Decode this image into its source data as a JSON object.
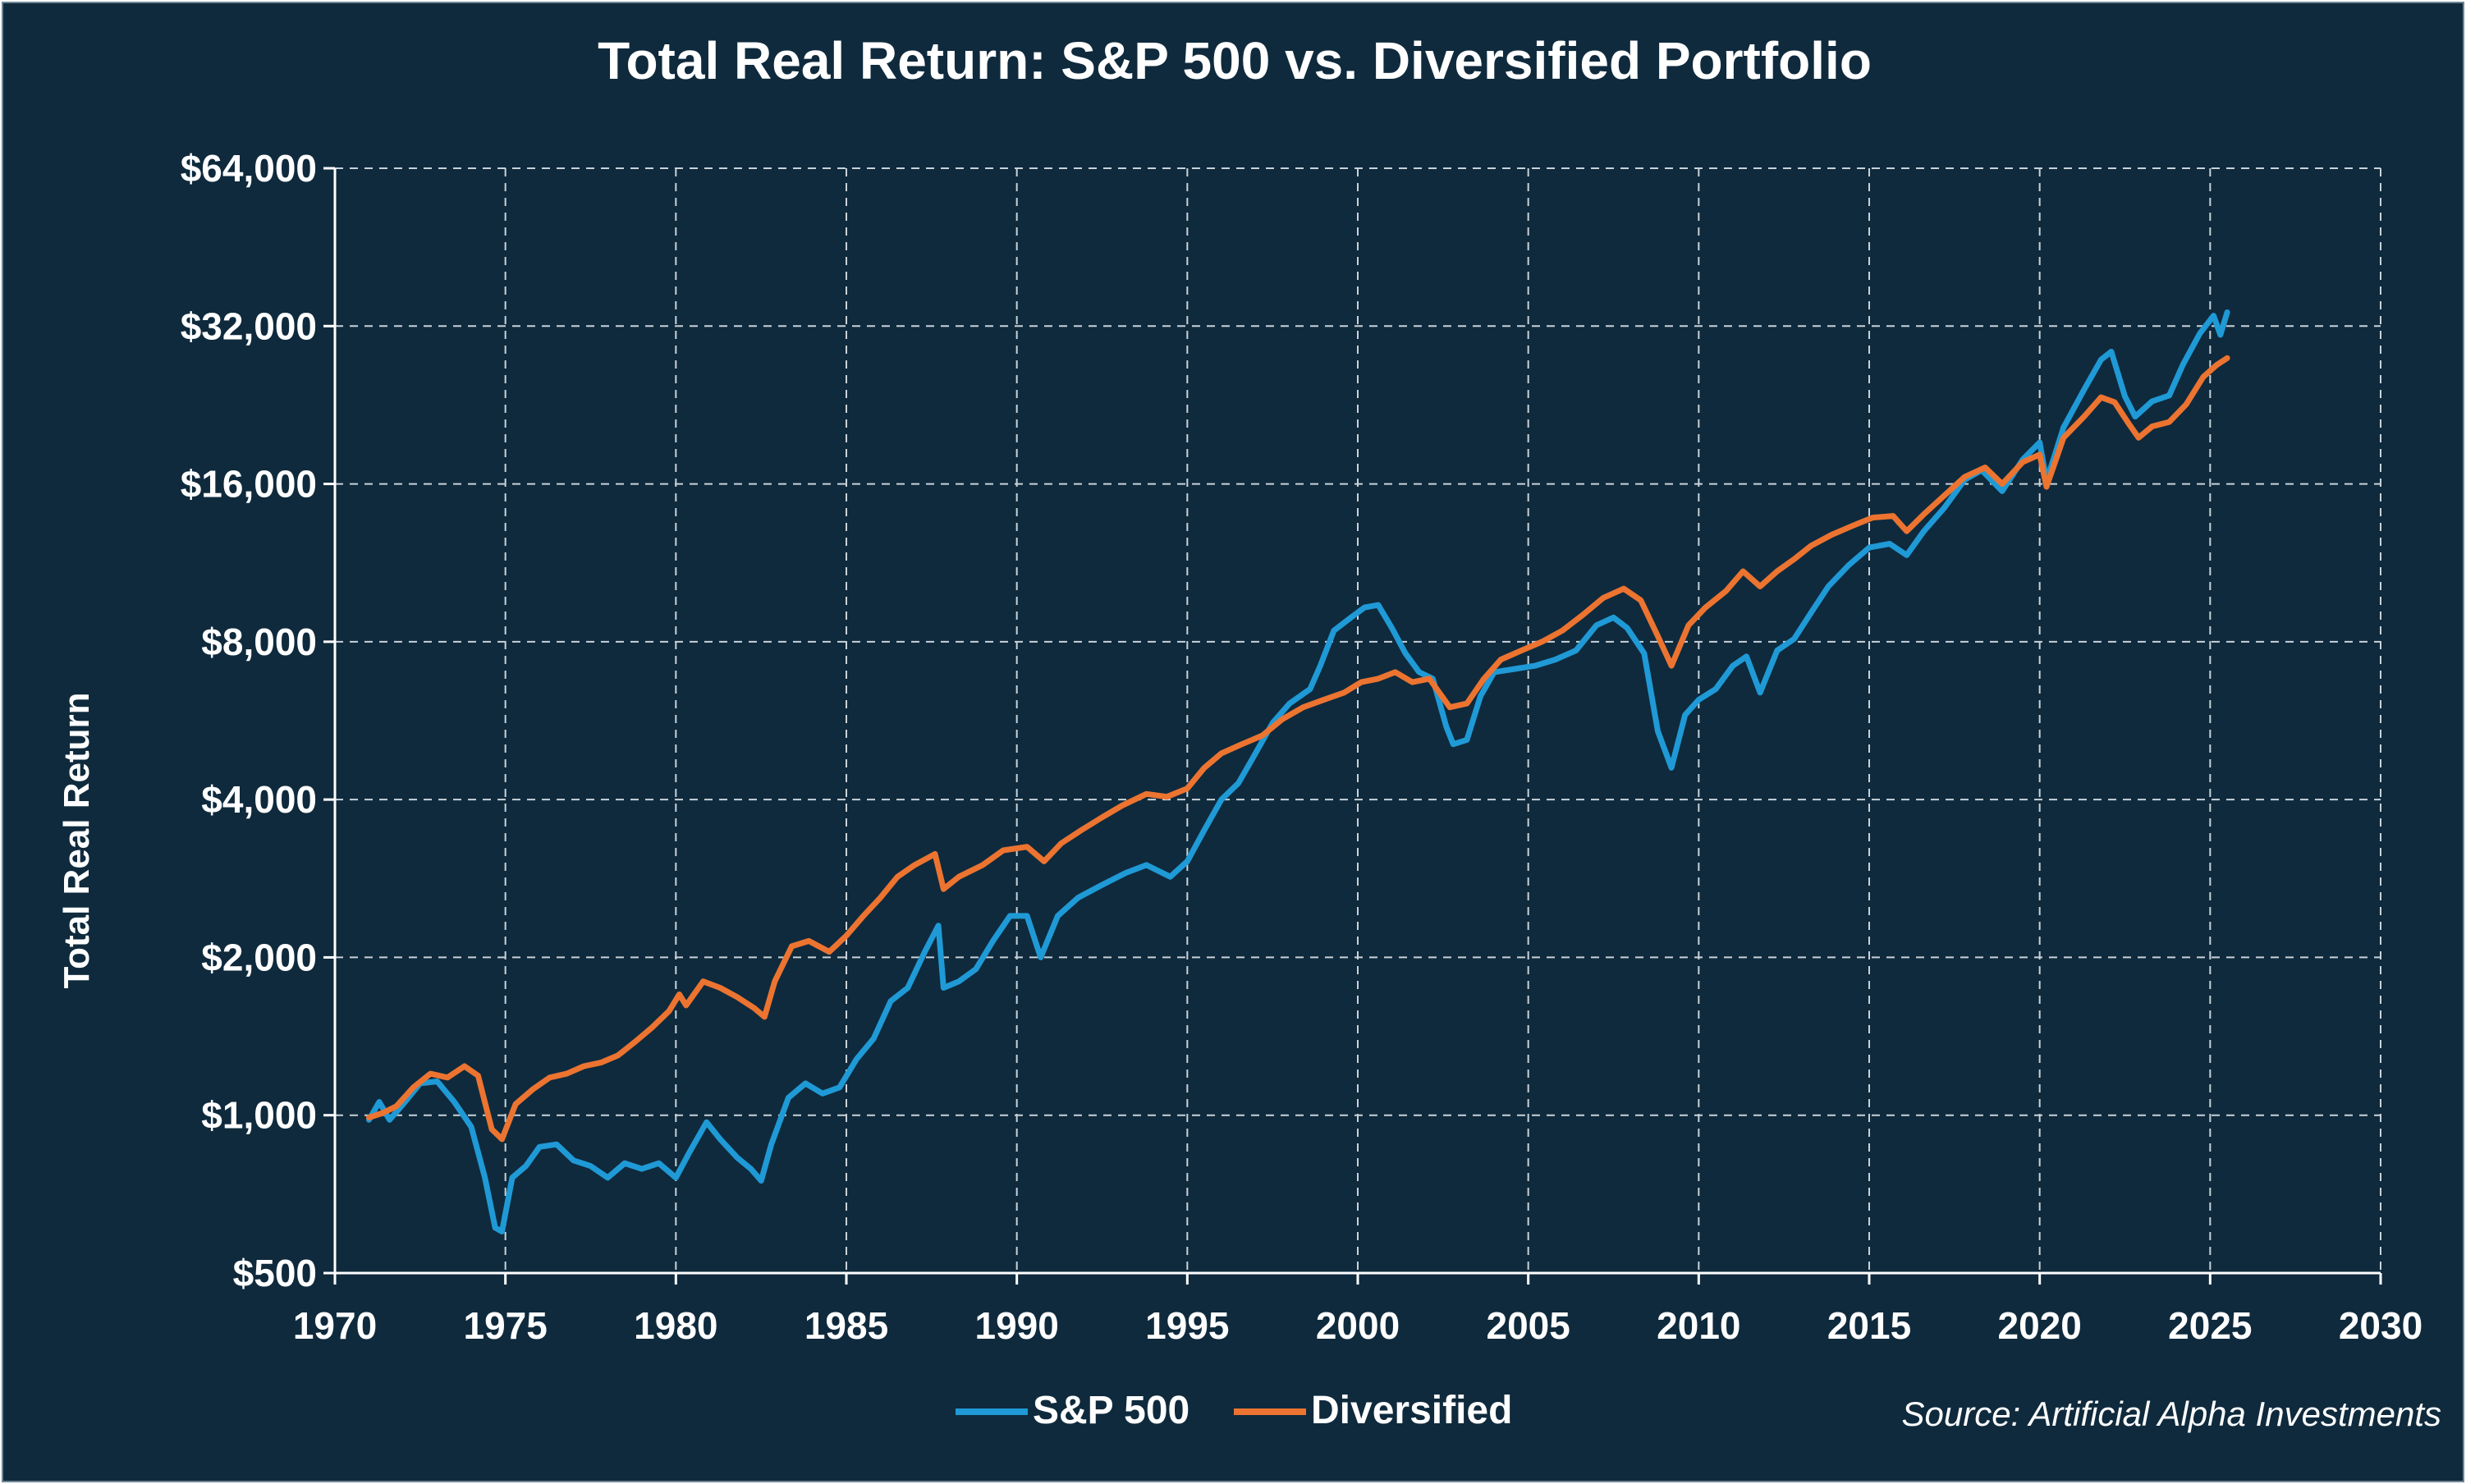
{
  "chart_data": {
    "type": "line",
    "title": "Total Real Return: S&P 500 vs. Diversified Portfolio",
    "ylabel": "Total Real Return",
    "xlabel": "",
    "y_scale": "log2",
    "xlim": [
      1970,
      2030
    ],
    "ylim": [
      500,
      64000
    ],
    "x_ticks": [
      1970,
      1975,
      1980,
      1985,
      1990,
      1995,
      2000,
      2005,
      2010,
      2015,
      2020,
      2025,
      2030
    ],
    "x_tick_labels": [
      "1970",
      "1975",
      "1980",
      "1985",
      "1990",
      "1995",
      "2000",
      "2005",
      "2010",
      "2015",
      "2020",
      "2025",
      "2030"
    ],
    "y_ticks": [
      500,
      1000,
      2000,
      4000,
      8000,
      16000,
      32000,
      64000
    ],
    "y_tick_labels": [
      "$500",
      "$1,000",
      "$2,000",
      "$4,000",
      "$8,000",
      "$16,000",
      "$32,000",
      "$64,000"
    ],
    "grid": true,
    "legend_position": "bottom-center",
    "source_note": "Source: Artificial Alpha Investments",
    "series": [
      {
        "name": "S&P 500",
        "color": "#1f9ad6",
        "points": [
          [
            1971.0,
            980
          ],
          [
            1971.3,
            1060
          ],
          [
            1971.6,
            980
          ],
          [
            1972.0,
            1050
          ],
          [
            1972.5,
            1150
          ],
          [
            1973.0,
            1160
          ],
          [
            1973.5,
            1060
          ],
          [
            1974.0,
            950
          ],
          [
            1974.4,
            760
          ],
          [
            1974.7,
            610
          ],
          [
            1974.9,
            600
          ],
          [
            1975.2,
            760
          ],
          [
            1975.6,
            800
          ],
          [
            1976.0,
            870
          ],
          [
            1976.5,
            880
          ],
          [
            1977.0,
            820
          ],
          [
            1977.5,
            800
          ],
          [
            1978.0,
            760
          ],
          [
            1978.5,
            810
          ],
          [
            1979.0,
            790
          ],
          [
            1979.5,
            810
          ],
          [
            1980.0,
            760
          ],
          [
            1980.4,
            850
          ],
          [
            1980.9,
            970
          ],
          [
            1981.3,
            900
          ],
          [
            1981.8,
            830
          ],
          [
            1982.2,
            790
          ],
          [
            1982.5,
            750
          ],
          [
            1982.8,
            880
          ],
          [
            1983.3,
            1080
          ],
          [
            1983.8,
            1150
          ],
          [
            1984.3,
            1100
          ],
          [
            1984.8,
            1130
          ],
          [
            1985.3,
            1280
          ],
          [
            1985.8,
            1400
          ],
          [
            1986.3,
            1650
          ],
          [
            1986.8,
            1750
          ],
          [
            1987.3,
            2050
          ],
          [
            1987.7,
            2300
          ],
          [
            1987.85,
            1750
          ],
          [
            1988.3,
            1800
          ],
          [
            1988.8,
            1900
          ],
          [
            1989.3,
            2150
          ],
          [
            1989.8,
            2400
          ],
          [
            1990.3,
            2400
          ],
          [
            1990.7,
            2000
          ],
          [
            1991.2,
            2400
          ],
          [
            1991.8,
            2600
          ],
          [
            1992.5,
            2750
          ],
          [
            1993.2,
            2900
          ],
          [
            1993.8,
            3000
          ],
          [
            1994.5,
            2850
          ],
          [
            1995.0,
            3050
          ],
          [
            1995.5,
            3500
          ],
          [
            1996.0,
            4000
          ],
          [
            1996.5,
            4300
          ],
          [
            1997.0,
            4900
          ],
          [
            1997.5,
            5600
          ],
          [
            1998.0,
            6100
          ],
          [
            1998.6,
            6500
          ],
          [
            1998.9,
            7200
          ],
          [
            1999.3,
            8400
          ],
          [
            1999.8,
            8900
          ],
          [
            2000.2,
            9300
          ],
          [
            2000.6,
            9400
          ],
          [
            2001.0,
            8500
          ],
          [
            2001.4,
            7600
          ],
          [
            2001.8,
            7000
          ],
          [
            2002.2,
            6800
          ],
          [
            2002.6,
            5500
          ],
          [
            2002.8,
            5100
          ],
          [
            2003.2,
            5200
          ],
          [
            2003.6,
            6300
          ],
          [
            2004.0,
            7000
          ],
          [
            2004.6,
            7100
          ],
          [
            2005.2,
            7200
          ],
          [
            2005.8,
            7400
          ],
          [
            2006.4,
            7700
          ],
          [
            2007.0,
            8600
          ],
          [
            2007.5,
            8900
          ],
          [
            2007.9,
            8500
          ],
          [
            2008.4,
            7600
          ],
          [
            2008.8,
            5400
          ],
          [
            2009.2,
            4600
          ],
          [
            2009.6,
            5800
          ],
          [
            2010.0,
            6200
          ],
          [
            2010.5,
            6500
          ],
          [
            2011.0,
            7200
          ],
          [
            2011.4,
            7500
          ],
          [
            2011.8,
            6400
          ],
          [
            2012.3,
            7700
          ],
          [
            2012.8,
            8100
          ],
          [
            2013.3,
            9100
          ],
          [
            2013.8,
            10200
          ],
          [
            2014.4,
            11200
          ],
          [
            2015.0,
            12100
          ],
          [
            2015.6,
            12300
          ],
          [
            2016.1,
            11700
          ],
          [
            2016.6,
            13000
          ],
          [
            2017.2,
            14400
          ],
          [
            2017.8,
            16300
          ],
          [
            2018.3,
            17000
          ],
          [
            2018.9,
            15500
          ],
          [
            2019.5,
            17800
          ],
          [
            2020.0,
            19200
          ],
          [
            2020.2,
            16200
          ],
          [
            2020.7,
            20500
          ],
          [
            2021.3,
            24200
          ],
          [
            2021.8,
            27600
          ],
          [
            2022.1,
            28600
          ],
          [
            2022.5,
            23500
          ],
          [
            2022.8,
            21500
          ],
          [
            2023.3,
            23000
          ],
          [
            2023.8,
            23600
          ],
          [
            2024.2,
            27000
          ],
          [
            2024.7,
            31000
          ],
          [
            2025.1,
            33500
          ],
          [
            2025.3,
            30800
          ],
          [
            2025.5,
            34000
          ]
        ]
      },
      {
        "name": "Diversified",
        "color": "#ec7430",
        "points": [
          [
            1971.0,
            990
          ],
          [
            1971.4,
            1010
          ],
          [
            1971.8,
            1040
          ],
          [
            1972.3,
            1130
          ],
          [
            1972.8,
            1200
          ],
          [
            1973.3,
            1180
          ],
          [
            1973.8,
            1240
          ],
          [
            1974.2,
            1190
          ],
          [
            1974.6,
            940
          ],
          [
            1974.9,
            900
          ],
          [
            1975.3,
            1050
          ],
          [
            1975.8,
            1120
          ],
          [
            1976.3,
            1180
          ],
          [
            1976.8,
            1200
          ],
          [
            1977.3,
            1240
          ],
          [
            1977.8,
            1260
          ],
          [
            1978.3,
            1300
          ],
          [
            1978.8,
            1380
          ],
          [
            1979.3,
            1470
          ],
          [
            1979.8,
            1580
          ],
          [
            1980.1,
            1700
          ],
          [
            1980.3,
            1620
          ],
          [
            1980.8,
            1800
          ],
          [
            1981.3,
            1750
          ],
          [
            1981.8,
            1680
          ],
          [
            1982.3,
            1600
          ],
          [
            1982.6,
            1540
          ],
          [
            1982.9,
            1800
          ],
          [
            1983.4,
            2100
          ],
          [
            1983.9,
            2150
          ],
          [
            1984.5,
            2050
          ],
          [
            1985.0,
            2200
          ],
          [
            1985.5,
            2400
          ],
          [
            1986.0,
            2600
          ],
          [
            1986.5,
            2850
          ],
          [
            1987.0,
            3000
          ],
          [
            1987.6,
            3150
          ],
          [
            1987.85,
            2700
          ],
          [
            1988.3,
            2850
          ],
          [
            1989.0,
            3000
          ],
          [
            1989.6,
            3200
          ],
          [
            1990.3,
            3250
          ],
          [
            1990.8,
            3050
          ],
          [
            1991.3,
            3300
          ],
          [
            1991.9,
            3500
          ],
          [
            1992.5,
            3700
          ],
          [
            1993.1,
            3900
          ],
          [
            1993.8,
            4100
          ],
          [
            1994.4,
            4050
          ],
          [
            1995.0,
            4200
          ],
          [
            1995.5,
            4600
          ],
          [
            1996.0,
            4900
          ],
          [
            1996.6,
            5100
          ],
          [
            1997.2,
            5300
          ],
          [
            1997.8,
            5700
          ],
          [
            1998.4,
            6000
          ],
          [
            1999.0,
            6200
          ],
          [
            1999.6,
            6400
          ],
          [
            2000.1,
            6700
          ],
          [
            2000.6,
            6800
          ],
          [
            2001.1,
            7000
          ],
          [
            2001.6,
            6700
          ],
          [
            2002.1,
            6800
          ],
          [
            2002.7,
            6000
          ],
          [
            2003.2,
            6100
          ],
          [
            2003.7,
            6800
          ],
          [
            2004.2,
            7400
          ],
          [
            2004.8,
            7700
          ],
          [
            2005.4,
            8000
          ],
          [
            2006.0,
            8400
          ],
          [
            2006.6,
            9000
          ],
          [
            2007.2,
            9700
          ],
          [
            2007.8,
            10100
          ],
          [
            2008.3,
            9600
          ],
          [
            2008.8,
            8200
          ],
          [
            2009.2,
            7200
          ],
          [
            2009.7,
            8600
          ],
          [
            2010.2,
            9300
          ],
          [
            2010.8,
            10000
          ],
          [
            2011.3,
            10900
          ],
          [
            2011.8,
            10200
          ],
          [
            2012.3,
            10900
          ],
          [
            2012.8,
            11500
          ],
          [
            2013.3,
            12200
          ],
          [
            2013.9,
            12800
          ],
          [
            2014.5,
            13300
          ],
          [
            2015.1,
            13800
          ],
          [
            2015.7,
            13900
          ],
          [
            2016.1,
            13000
          ],
          [
            2016.6,
            14000
          ],
          [
            2017.2,
            15200
          ],
          [
            2017.8,
            16500
          ],
          [
            2018.4,
            17200
          ],
          [
            2018.9,
            16000
          ],
          [
            2019.5,
            17600
          ],
          [
            2020.0,
            18200
          ],
          [
            2020.2,
            15800
          ],
          [
            2020.7,
            19600
          ],
          [
            2021.3,
            21500
          ],
          [
            2021.8,
            23400
          ],
          [
            2022.2,
            22900
          ],
          [
            2022.6,
            20900
          ],
          [
            2022.9,
            19600
          ],
          [
            2023.3,
            20600
          ],
          [
            2023.8,
            21000
          ],
          [
            2024.3,
            22700
          ],
          [
            2024.8,
            25600
          ],
          [
            2025.2,
            27000
          ],
          [
            2025.5,
            27800
          ]
        ]
      }
    ]
  }
}
